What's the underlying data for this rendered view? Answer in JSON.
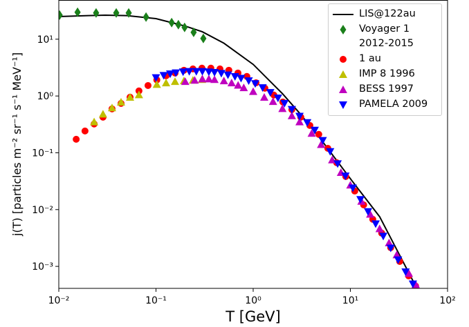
{
  "chart_data": {
    "type": "scatter",
    "x_label": "T [GeV]",
    "y_label": "j(T) [particles m⁻² sr⁻¹ s⁻¹ MeV⁻¹]",
    "log_x": true,
    "log_y": true,
    "xlim": [
      0.01,
      100
    ],
    "ylim": [
      0.00041,
      49
    ],
    "xticks": [
      {
        "value": 0.01,
        "label": "10⁻²"
      },
      {
        "value": 0.1,
        "label": "10⁻¹"
      },
      {
        "value": 1,
        "label": "10⁰"
      },
      {
        "value": 10,
        "label": "10¹"
      },
      {
        "value": 100,
        "label": "10²"
      }
    ],
    "yticks": [
      {
        "value": 0.001,
        "label": "10⁻³"
      },
      {
        "value": 0.01,
        "label": "10⁻²"
      },
      {
        "value": 0.1,
        "label": "10⁻¹"
      },
      {
        "value": 1,
        "label": "10⁰"
      },
      {
        "value": 10,
        "label": "10¹"
      }
    ],
    "legend": "upper right",
    "series": [
      {
        "name": "LIS@122au",
        "color": "#000000",
        "style": "line",
        "x": [
          0.01,
          0.02,
          0.03,
          0.05,
          0.1,
          0.2,
          0.3,
          0.5,
          1,
          2,
          3,
          5,
          10,
          20,
          47
        ],
        "values": [
          25,
          26,
          26.5,
          26,
          23,
          17,
          13.5,
          8.5,
          3.6,
          1.1,
          0.5,
          0.17,
          0.035,
          0.0075,
          0.00045
        ]
      },
      {
        "name": "Voyager 1 2012-2015",
        "color": "#1a7f1a",
        "style": "diamond",
        "x": [
          0.0102,
          0.0156,
          0.0242,
          0.039,
          0.0524,
          0.079,
          0.145,
          0.17,
          0.197,
          0.244,
          0.307
        ],
        "values": [
          26.6,
          29.8,
          29,
          29,
          29,
          24.5,
          19.6,
          18,
          16.1,
          13.2,
          10.3
        ]
      },
      {
        "name": "1 au",
        "color": "#ff0000",
        "style": "circle",
        "x": [
          0.0151,
          0.0186,
          0.0231,
          0.0285,
          0.0353,
          0.0437,
          0.0541,
          0.0668,
          0.0828,
          0.102,
          0.127,
          0.157,
          0.194,
          0.24,
          0.297,
          0.367,
          0.455,
          0.562,
          0.697,
          0.861,
          1.07,
          1.32,
          1.63,
          2.02,
          2.5,
          3.09,
          3.83,
          4.73,
          5.86,
          7.24,
          8.97,
          11.1,
          13.7,
          17.0,
          21.0,
          26.0,
          32.2,
          39.8,
          46.9
        ],
        "values": [
          0.173,
          0.242,
          0.321,
          0.424,
          0.593,
          0.741,
          0.953,
          1.23,
          1.53,
          1.92,
          2.27,
          2.54,
          2.84,
          3.0,
          3.09,
          3.09,
          3.0,
          2.84,
          2.54,
          2.21,
          1.71,
          1.37,
          1.04,
          0.784,
          0.576,
          0.424,
          0.303,
          0.211,
          0.12,
          0.0668,
          0.0382,
          0.0212,
          0.0121,
          0.00675,
          0.00385,
          0.00214,
          0.00122,
          0.00068,
          0.00045
        ]
      },
      {
        "name": "IMP 8 1996",
        "color": "#bfbf00",
        "style": "triangle-up",
        "x": [
          0.0231,
          0.0285,
          0.0353,
          0.0437,
          0.0541,
          0.0668,
          0.102,
          0.127,
          0.157,
          0.194,
          0.24,
          0.297
        ],
        "values": [
          0.35,
          0.48,
          0.62,
          0.78,
          0.95,
          1.05,
          1.6,
          1.7,
          1.8,
          1.85,
          1.9,
          1.95
        ]
      },
      {
        "name": "BESS 1997",
        "color": "#bf00bf",
        "style": "triangle-up",
        "x": [
          0.2,
          0.25,
          0.3,
          0.35,
          0.4,
          0.5,
          0.6,
          0.7,
          0.8,
          1,
          1.3,
          1.6,
          2,
          2.5,
          3,
          4,
          5,
          6.5,
          8,
          10,
          13,
          16,
          20,
          25,
          30,
          40,
          47
        ],
        "values": [
          1.8,
          1.9,
          2.0,
          2.0,
          1.95,
          1.85,
          1.7,
          1.55,
          1.4,
          1.2,
          0.95,
          0.8,
          0.6,
          0.45,
          0.35,
          0.22,
          0.14,
          0.075,
          0.045,
          0.027,
          0.014,
          0.0083,
          0.0046,
          0.0026,
          0.0016,
          0.00075,
          0.00048
        ]
      },
      {
        "name": "PAMELA 2009",
        "color": "#0000ff",
        "style": "triangle-down",
        "x": [
          0.1,
          0.12,
          0.14,
          0.16,
          0.19,
          0.22,
          0.26,
          0.3,
          0.35,
          0.4,
          0.47,
          0.55,
          0.65,
          0.75,
          0.9,
          1.05,
          1.25,
          1.5,
          1.8,
          2.1,
          2.5,
          3,
          3.6,
          4.3,
          5.2,
          6.2,
          7.4,
          8.9,
          10.6,
          12.7,
          15.2,
          18.2,
          21.8,
          26,
          31,
          37,
          44
        ],
        "values": [
          2.1,
          2.3,
          2.45,
          2.55,
          2.65,
          2.7,
          2.7,
          2.7,
          2.65,
          2.6,
          2.5,
          2.35,
          2.2,
          2.05,
          1.85,
          1.65,
          1.4,
          1.15,
          0.92,
          0.74,
          0.58,
          0.44,
          0.34,
          0.25,
          0.165,
          0.105,
          0.064,
          0.039,
          0.024,
          0.015,
          0.0092,
          0.0056,
          0.0034,
          0.0021,
          0.0013,
          0.0008,
          0.00049
        ]
      }
    ]
  }
}
